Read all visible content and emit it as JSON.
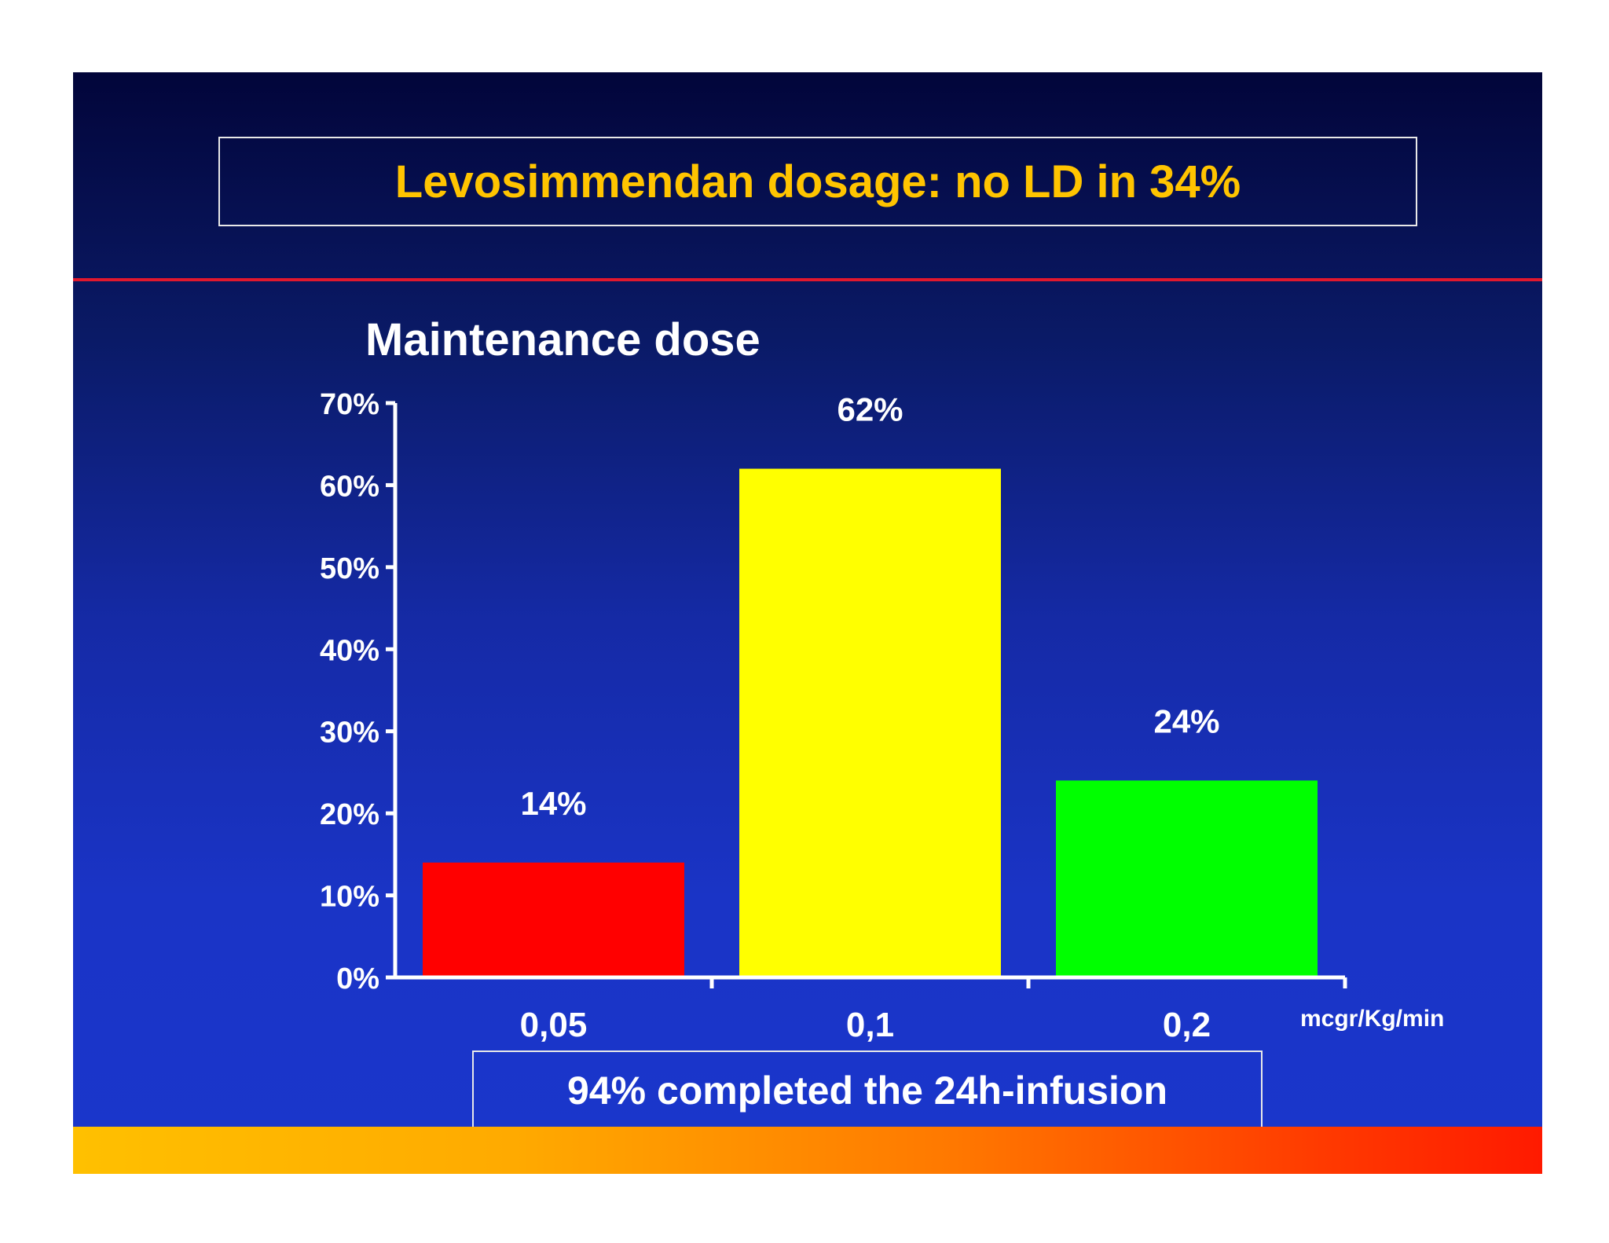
{
  "slide": {
    "title": "Levosimmendan dosage: no LD in 34%",
    "subtitle": "Maintenance dose",
    "unit_label": "mcgr/Kg/min",
    "footer": "94% completed the 24h-infusion"
  },
  "colors": {
    "title": "#ffc400",
    "rule": "#e0182e",
    "bar_red": "#ff0000",
    "bar_yellow": "#ffff00",
    "bar_green": "#00ff00"
  },
  "chart_data": {
    "type": "bar",
    "title": "Maintenance dose",
    "xlabel": "mcgr/Kg/min",
    "ylabel": "",
    "categories": [
      "0,05",
      "0,1",
      "0,2"
    ],
    "values": [
      14,
      62,
      24
    ],
    "value_labels": [
      "14%",
      "62%",
      "24%"
    ],
    "bar_colors": [
      "#ff0000",
      "#ffff00",
      "#00ff00"
    ],
    "ylim": [
      0,
      70
    ],
    "yticks": [
      0,
      10,
      20,
      30,
      40,
      50,
      60,
      70
    ],
    "ytick_labels": [
      "0%",
      "10%",
      "20%",
      "30%",
      "40%",
      "50%",
      "60%",
      "70%"
    ],
    "grid": false,
    "legend": "none"
  }
}
